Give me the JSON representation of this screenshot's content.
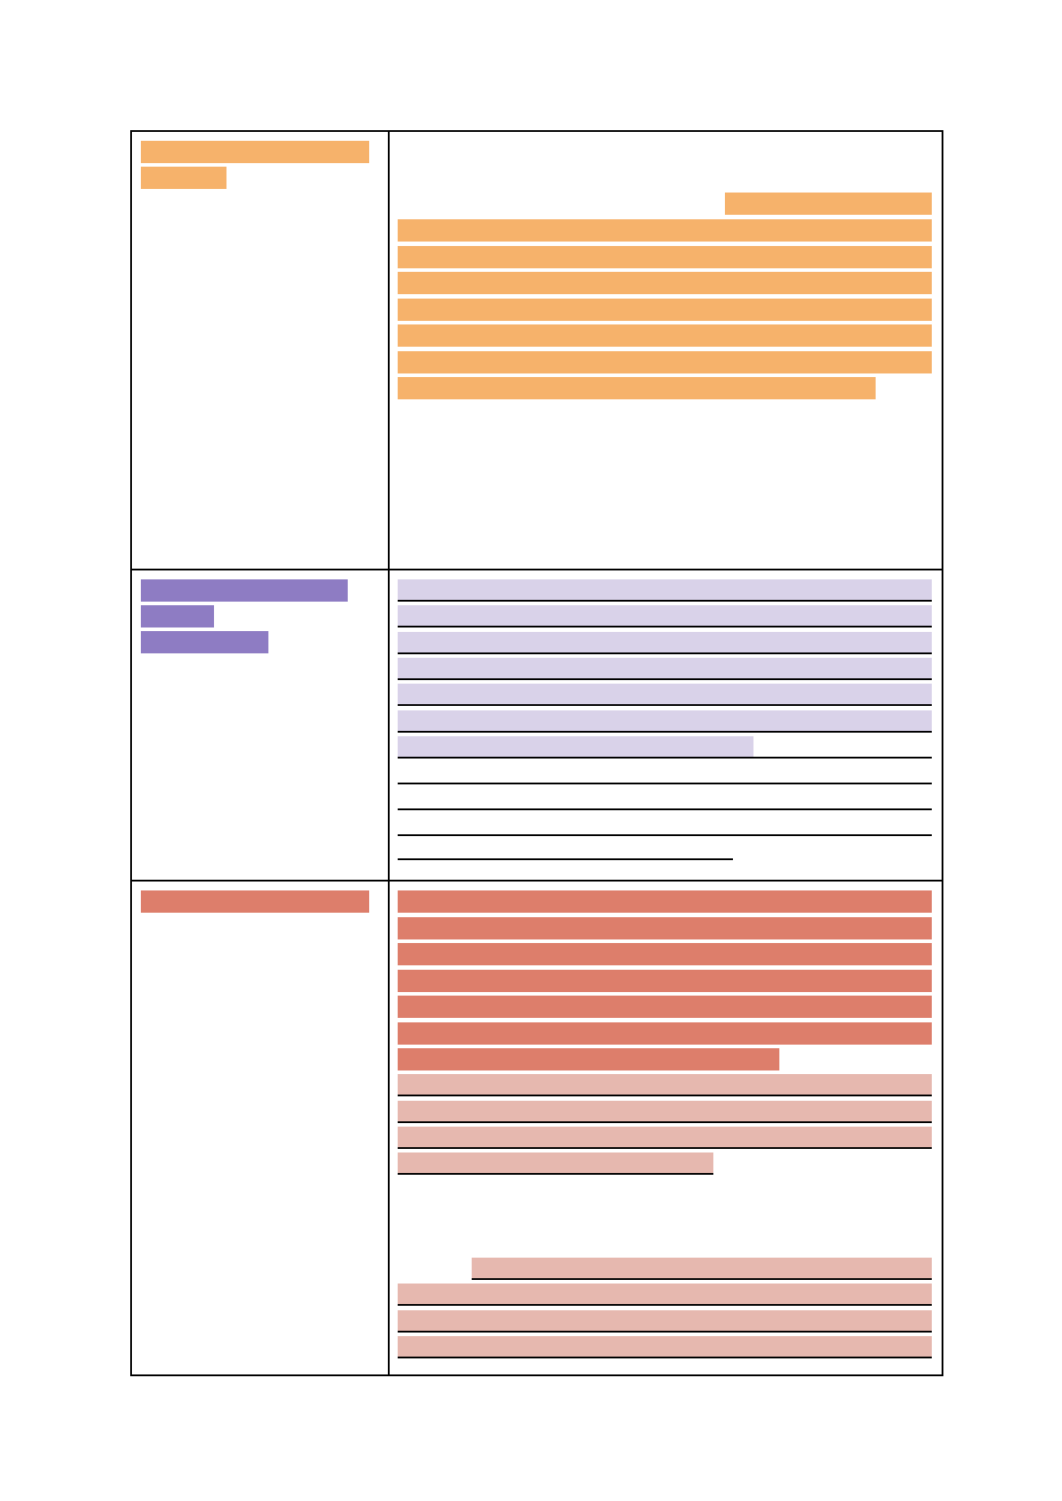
{
  "document": {
    "colors": {
      "orange_redaction": "#f6b26b",
      "purple_redaction": "#8e7cc3",
      "lavender_redaction": "#d9d2e9",
      "red_redaction": "#dd7e6b",
      "pink_redaction": "#e6b8af",
      "rule": "#000000",
      "background": "#ffffff"
    },
    "rows": [
      {
        "label_color": "orange_redaction",
        "label_lines": 2,
        "content_style": "solid orange redaction blocks, 8 lines"
      },
      {
        "label_color": "purple_redaction",
        "label_lines": 3,
        "content_style": "lavender redaction blocks with underlines, 7 highlighted lines followed by 4 underlined blank lines"
      },
      {
        "label_color": "red_redaction",
        "label_lines": 1,
        "content_style": "red redaction blocks (7 lines) then pink underlined blocks (4 lines), gap, then pink underlined blocks (4 lines)"
      }
    ]
  }
}
